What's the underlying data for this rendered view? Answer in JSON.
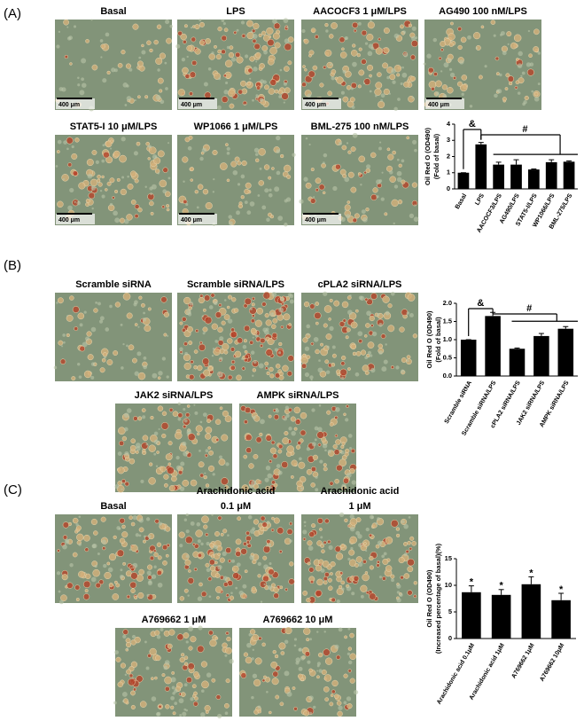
{
  "panels": [
    {
      "label": "(A)",
      "scale_bar": "400 μm",
      "images": [
        "Basal",
        "LPS",
        "AACOCF3 1 μM/LPS",
        "AG490 100 nM/LPS",
        "STAT5-I 10 μM/LPS",
        "WP1066 1 μM/LPS",
        "BML-275 100 nM/LPS"
      ]
    },
    {
      "label": "(B)",
      "images": [
        "Scramble siRNA",
        "Scramble siRNA/LPS",
        "cPLA2 siRNA/LPS",
        "JAK2 siRNA/LPS",
        "AMPK siRNA/LPS"
      ]
    },
    {
      "label": "(C)",
      "images": [
        "Basal",
        [
          "Arachidonic acid",
          "0.1 μM"
        ],
        [
          "Arachidonic acid",
          "1 μM"
        ],
        "A769662 1 μM",
        "A769662 10 μM"
      ]
    }
  ],
  "chart_data": [
    {
      "type": "bar",
      "y_label": [
        "Oil Red O (OD490)",
        "(Fold of basal)"
      ],
      "categories": [
        "Basal",
        "LPS",
        "AACOCF3/LPS",
        "AG490/LPS",
        "STAT5-I/LPS",
        "WP1066/LPS",
        "BML-275/LPS"
      ],
      "values": [
        1.0,
        2.75,
        1.5,
        1.5,
        1.2,
        1.65,
        1.68
      ],
      "errors": [
        0,
        0.12,
        0.15,
        0.3,
        0.03,
        0.15,
        0.05
      ],
      "ylim": [
        0,
        4
      ],
      "yticks": [
        0,
        1,
        2,
        3,
        4
      ],
      "color": "#000000",
      "annotations": [
        "&",
        "#"
      ]
    },
    {
      "type": "bar",
      "y_label": [
        "Oil Red O (OD490)",
        "(Fold of basal)"
      ],
      "categories": [
        "Scramble siRNA",
        "Scramble siRNA/LPS",
        "cPLA2 siRNA/LPS",
        "JAK2 siRNA/LPS",
        "AMPK siRNA/LPS"
      ],
      "values": [
        1.0,
        1.65,
        0.75,
        1.1,
        1.3
      ],
      "errors": [
        0,
        0.1,
        0.02,
        0.07,
        0.06
      ],
      "ylim": [
        0,
        2
      ],
      "yticks": [
        {
          "value": 0,
          "label": "0.0"
        },
        {
          "value": 0.5,
          "label": "0.5"
        },
        {
          "value": 1,
          "label": "1.0"
        },
        {
          "value": 1.5,
          "label": "1.5"
        },
        {
          "value": 2,
          "label": "2.0"
        }
      ],
      "color": "#000000",
      "annotations": [
        "&",
        "#"
      ]
    },
    {
      "type": "bar",
      "y_label": [
        "Oil Red O (OD490)",
        "(Increased percentage of basal)(%)"
      ],
      "categories": [
        "Arachidonic acid 0.1μM",
        "Arachidonic acid 1μM",
        "A769662 1μM",
        "A769662 10μM"
      ],
      "values": [
        8.7,
        8.2,
        10.2,
        7.2
      ],
      "errors": [
        1.2,
        1.0,
        1.4,
        1.3
      ],
      "ylim": [
        0,
        15
      ],
      "yticks": [
        0,
        5,
        10,
        15
      ],
      "color": "#000000",
      "annotations": [
        "*",
        "*",
        "*",
        "*"
      ]
    }
  ]
}
